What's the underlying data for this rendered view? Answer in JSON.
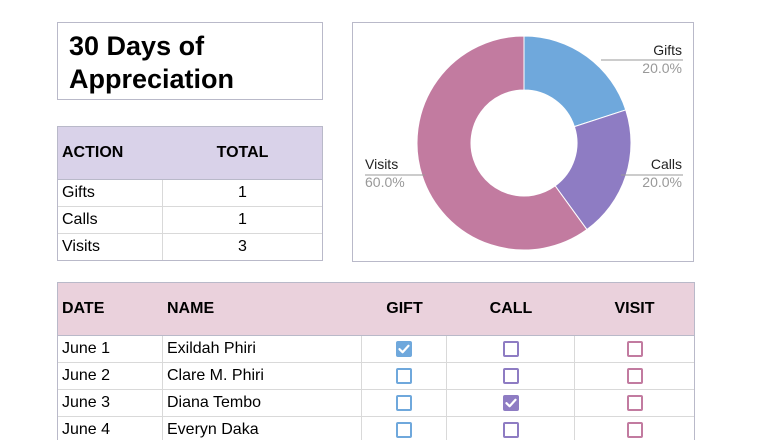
{
  "title": "30 Days of Appreciation",
  "summary": {
    "headers": {
      "action": "ACTION",
      "total": "TOTAL"
    },
    "rows": [
      {
        "action": "Gifts",
        "total": "1"
      },
      {
        "action": "Calls",
        "total": "1"
      },
      {
        "action": "Visits",
        "total": "3"
      }
    ]
  },
  "chart": {
    "type": "donut",
    "slices": [
      {
        "name": "Gifts",
        "percent": 20.0,
        "label": "Gifts",
        "pct_label": "20.0%",
        "color": "#6fa8dc"
      },
      {
        "name": "Calls",
        "percent": 20.0,
        "label": "Calls",
        "pct_label": "20.0%",
        "color": "#8e7cc3"
      },
      {
        "name": "Visits",
        "percent": 60.0,
        "label": "Visits",
        "pct_label": "60.0%",
        "color": "#c27ba0"
      }
    ]
  },
  "log": {
    "headers": {
      "date": "DATE",
      "name": "NAME",
      "gift": "GIFT",
      "call": "CALL",
      "visit": "VISIT"
    },
    "colors": {
      "gift": "#6fa8dc",
      "call": "#8e7cc3",
      "visit": "#c27ba0"
    },
    "rows": [
      {
        "date": "June 1",
        "name": "Exildah Phiri",
        "gift": true,
        "call": false,
        "visit": false
      },
      {
        "date": "June 2",
        "name": "Clare M. Phiri",
        "gift": false,
        "call": false,
        "visit": false
      },
      {
        "date": "June 3",
        "name": "Diana Tembo",
        "gift": false,
        "call": true,
        "visit": false
      },
      {
        "date": "June 4",
        "name": "Everyn Daka",
        "gift": false,
        "call": false,
        "visit": false
      }
    ]
  }
}
